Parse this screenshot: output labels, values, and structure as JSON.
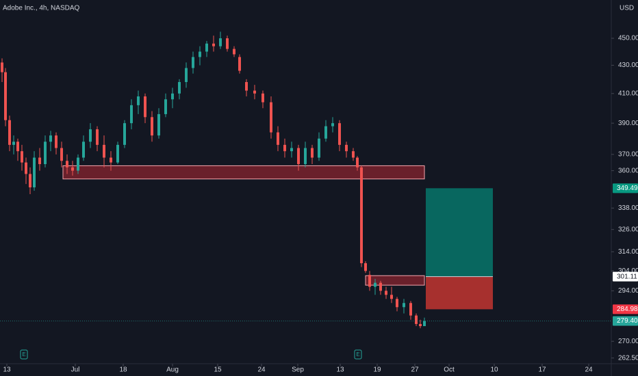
{
  "chart_data": {
    "type": "candlestick",
    "title": "Adobe Inc., 4h, NASDAQ",
    "currency": "USD",
    "log_scale": true,
    "grid": false,
    "up_color": "#26a69a",
    "down_color": "#ef5350",
    "xlim": [
      0,
      178
    ],
    "ylim": [
      260,
      480
    ],
    "xticks": [
      {
        "value": 2,
        "label": "13"
      },
      {
        "value": 22,
        "label": "Jul"
      },
      {
        "value": 36,
        "label": "18"
      },
      {
        "value": 50.4,
        "label": "Aug"
      },
      {
        "value": 63.6,
        "label": "15"
      },
      {
        "value": 76.4,
        "label": "24"
      },
      {
        "value": 87,
        "label": "Sep"
      },
      {
        "value": 99.4,
        "label": "13"
      },
      {
        "value": 110.2,
        "label": "19"
      },
      {
        "value": 121.2,
        "label": "27"
      },
      {
        "value": 131.2,
        "label": "Oct"
      },
      {
        "value": 144.4,
        "label": "10"
      },
      {
        "value": 158.4,
        "label": "17"
      },
      {
        "value": 172,
        "label": "24"
      }
    ],
    "yticks": [
      {
        "value": 450,
        "label": "450.00"
      },
      {
        "value": 430,
        "label": "430.00"
      },
      {
        "value": 410,
        "label": "410.00"
      },
      {
        "value": 390,
        "label": "390.00"
      },
      {
        "value": 370,
        "label": "370.00"
      },
      {
        "value": 360,
        "label": "360.00"
      },
      {
        "value": 338,
        "label": "338.00"
      },
      {
        "value": 326,
        "label": "326.00"
      },
      {
        "value": 314,
        "label": "314.00"
      },
      {
        "value": 304,
        "label": "304.00"
      },
      {
        "value": 294,
        "label": "294.00"
      },
      {
        "value": 270,
        "label": "270.00"
      },
      {
        "value": 262.5,
        "label": "262.50"
      }
    ],
    "x": [
      0.6,
      1.6,
      2.8,
      4,
      5.2,
      6.4,
      7.6,
      8.8,
      10,
      11.6,
      13.2,
      14.8,
      16.4,
      18,
      19.6,
      21.2,
      22.8,
      24.4,
      26.4,
      28.4,
      30.4,
      32.4,
      34.4,
      36.4,
      38.4,
      40.4,
      42.4,
      44.4,
      46.4,
      48.4,
      50.4,
      52.4,
      54.4,
      56.4,
      58.4,
      60.4,
      62.4,
      64.4,
      66.4,
      68.4,
      70,
      72,
      74.4,
      76.8,
      79.2,
      81.2,
      83.2,
      85.2,
      87.2,
      89.2,
      91.2,
      93.2,
      95.2,
      97.2,
      99.2,
      101.2,
      103.2,
      104.4,
      105.6,
      106.8,
      108,
      109.6,
      111.2,
      112.8,
      114.4,
      116,
      118,
      120,
      121.6,
      122.8,
      124
    ],
    "open": [
      432,
      425,
      392,
      376,
      378,
      372,
      365,
      358,
      350,
      368,
      364,
      378,
      382,
      374,
      366,
      362,
      360,
      368,
      378,
      386,
      376,
      368,
      365,
      376,
      390,
      402,
      408,
      394,
      382,
      396,
      406,
      410,
      418,
      428,
      436,
      440,
      446,
      444,
      450,
      442,
      436,
      418,
      412,
      410,
      404,
      384,
      376,
      372,
      374,
      364,
      374,
      368,
      380,
      388,
      390,
      376,
      372,
      368,
      362,
      308,
      302,
      296,
      298,
      294,
      292,
      290,
      286,
      288,
      282,
      278,
      277
    ],
    "high": [
      435,
      428,
      395,
      382,
      380,
      376,
      368,
      362,
      372,
      374,
      382,
      385,
      384,
      378,
      370,
      366,
      370,
      382,
      390,
      388,
      382,
      372,
      378,
      392,
      406,
      412,
      410,
      398,
      400,
      410,
      414,
      420,
      432,
      440,
      444,
      448,
      452,
      455,
      452,
      444,
      438,
      420,
      416,
      412,
      408,
      388,
      380,
      378,
      376,
      378,
      376,
      384,
      392,
      394,
      392,
      378,
      374,
      369,
      363,
      309,
      304,
      300,
      299,
      296,
      296,
      291,
      290,
      289,
      283,
      280,
      281
    ],
    "low": [
      418,
      388,
      372,
      370,
      366,
      360,
      352,
      346,
      348,
      360,
      362,
      372,
      370,
      362,
      358,
      357,
      358,
      366,
      374,
      372,
      362,
      360,
      364,
      374,
      386,
      396,
      390,
      378,
      380,
      394,
      400,
      406,
      414,
      424,
      430,
      436,
      440,
      442,
      440,
      436,
      424,
      408,
      406,
      400,
      380,
      372,
      368,
      368,
      360,
      362,
      364,
      366,
      378,
      384,
      372,
      368,
      366,
      360,
      306,
      303,
      294,
      292,
      292,
      290,
      288,
      284,
      283,
      280,
      277,
      276,
      277
    ],
    "close": [
      425,
      392,
      376,
      378,
      372,
      365,
      358,
      350,
      368,
      364,
      378,
      382,
      374,
      366,
      362,
      360,
      368,
      378,
      386,
      376,
      368,
      365,
      376,
      390,
      402,
      408,
      394,
      382,
      396,
      406,
      410,
      418,
      428,
      436,
      440,
      446,
      444,
      450,
      442,
      438,
      426,
      412,
      410,
      404,
      384,
      376,
      372,
      374,
      364,
      374,
      368,
      380,
      388,
      390,
      376,
      372,
      368,
      362,
      308,
      304,
      296,
      298,
      294,
      292,
      290,
      286,
      288,
      282,
      278,
      277,
      279.4
    ],
    "last_price": {
      "value": 279.4,
      "label": "279.40"
    },
    "zones": [
      {
        "x": [
          18.4,
          124
        ],
        "y": [
          355,
          363
        ]
      },
      {
        "x": [
          106.8,
          124
        ],
        "y": [
          296.8,
          301.6
        ]
      }
    ],
    "position": {
      "x": [
        124.4,
        144
      ],
      "entry": {
        "value": 301.11,
        "label": "301.11"
      },
      "target": {
        "value": 349.49,
        "label": "349.49"
      },
      "stop": {
        "value": 284.98,
        "label": "284.98"
      }
    },
    "earnings": {
      "x": [
        7,
        104.6
      ],
      "labels": [
        "E",
        "E"
      ]
    }
  }
}
